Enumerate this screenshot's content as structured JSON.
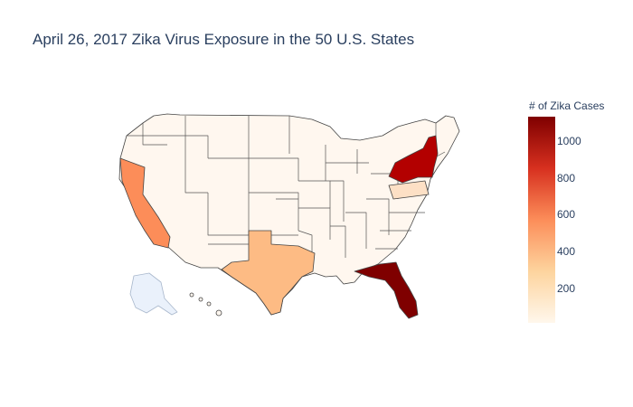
{
  "title": "April 26, 2017 Zika Virus Exposure in the 50 U.S. States",
  "colorbar": {
    "title": "# of Zika Cases",
    "ticks": [
      "200",
      "400",
      "600",
      "800",
      "1000"
    ],
    "min": 0,
    "max": 1120,
    "colors": [
      "#fff7ec",
      "#fdd49e",
      "#fc8d59",
      "#d7301f",
      "#7f0000"
    ]
  },
  "colors": {
    "border": "#444444",
    "alaska": "#eaf1fb",
    "background": "#ffffff"
  },
  "states": [
    {
      "name": "New York",
      "cases": 1000
    },
    {
      "name": "Florida",
      "cases": 1120
    },
    {
      "name": "California",
      "cases": 430
    },
    {
      "name": "Texas",
      "cases": 310
    }
  ]
}
